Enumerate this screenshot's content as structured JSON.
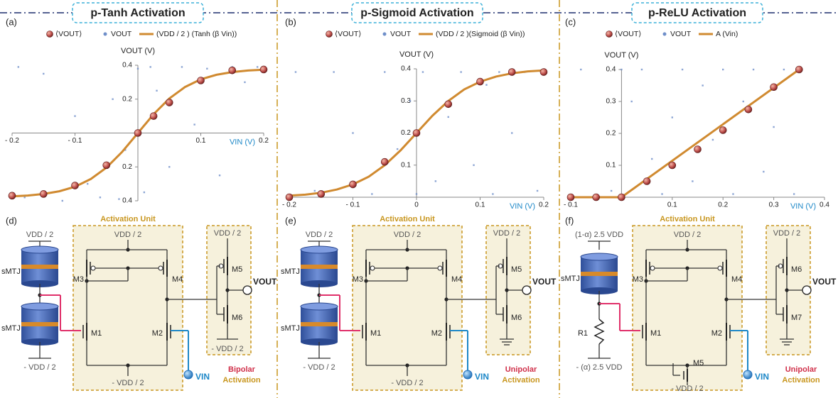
{
  "chart_data": [
    {
      "panel": "(a)",
      "type": "scatter",
      "title": "p-Tanh Activation",
      "xlabel": "VIN (V)",
      "ylabel": "VOUT (V)",
      "xlim": [
        -0.2,
        0.2
      ],
      "ylim": [
        -0.4,
        0.4
      ],
      "xticks": [
        {
          "value": -0.2,
          "label": "- 0.2"
        },
        {
          "value": -0.1,
          "label": "- 0.1"
        },
        0.1,
        0.2
      ],
      "yticks": [
        0.4,
        0.2,
        {
          "value": -0.2,
          "label": "0.2"
        },
        {
          "value": -0.4,
          "label": "0.4"
        }
      ],
      "series": [
        {
          "name": "⟨VOUT⟩",
          "type": "points",
          "color": "#c0504d",
          "x": [
            -0.2,
            -0.15,
            -0.1,
            -0.05,
            0,
            0.025,
            0.05,
            0.1,
            0.15,
            0.2
          ],
          "values": [
            -0.37,
            -0.36,
            -0.31,
            -0.19,
            0,
            0.1,
            0.18,
            0.31,
            0.37,
            0.375
          ]
        },
        {
          "name": "VOUT",
          "type": "scatter",
          "color": "#6f8fc9",
          "x": [
            -0.19,
            -0.18,
            -0.15,
            -0.12,
            -0.1,
            -0.08,
            -0.06,
            -0.04,
            -0.03,
            -0.02,
            0,
            0.01,
            0.02,
            0.03,
            0.05,
            0.07,
            0.09,
            0.11,
            0.13,
            0.15,
            0.17,
            0.19
          ],
          "values": [
            0.39,
            -0.38,
            0.35,
            -0.4,
            0.1,
            -0.3,
            -0.38,
            0.2,
            -0.39,
            -0.1,
            0.38,
            -0.35,
            0.39,
            0.25,
            -0.2,
            0.39,
            0.05,
            0.38,
            -0.25,
            0.39,
            0.3,
            0.39
          ]
        },
        {
          "name": "(VDD / 2 ) (Tanh (β Vin))",
          "type": "line",
          "color": "#d08a30",
          "x": [
            -0.2,
            -0.175,
            -0.15,
            -0.125,
            -0.1,
            -0.075,
            -0.05,
            -0.025,
            0,
            0.025,
            0.05,
            0.075,
            0.1,
            0.125,
            0.15,
            0.175,
            0.2
          ],
          "values": [
            -0.374,
            -0.369,
            -0.36,
            -0.344,
            -0.317,
            -0.272,
            -0.204,
            -0.111,
            0,
            0.111,
            0.204,
            0.272,
            0.317,
            0.344,
            0.36,
            0.369,
            0.374
          ]
        }
      ]
    },
    {
      "panel": "(b)",
      "type": "scatter",
      "title": "p-Sigmoid Activation",
      "xlabel": "VIN (V)",
      "ylabel": "VOUT (V)",
      "xlim": [
        -0.2,
        0.2
      ],
      "ylim": [
        0,
        0.4
      ],
      "xticks": [
        {
          "value": -0.2,
          "label": "- 0.2"
        },
        {
          "value": -0.1,
          "label": "- 0.1"
        },
        0,
        0.1,
        0.2
      ],
      "yticks": [
        0.1,
        0.2,
        0.3,
        0.4
      ],
      "series": [
        {
          "name": "⟨VOUT⟩",
          "type": "points",
          "color": "#c0504d",
          "x": [
            -0.2,
            -0.15,
            -0.1,
            -0.05,
            0,
            0.05,
            0.1,
            0.15,
            0.2
          ],
          "values": [
            0,
            0.01,
            0.04,
            0.11,
            0.2,
            0.29,
            0.36,
            0.39,
            0.39
          ]
        },
        {
          "name": "VOUT",
          "type": "scatter",
          "color": "#6f8fc9",
          "x": [
            -0.19,
            -0.16,
            -0.13,
            -0.1,
            -0.07,
            -0.05,
            -0.03,
            -0.01,
            0,
            0.01,
            0.03,
            0.05,
            0.07,
            0.09,
            0.11,
            0.12,
            0.13,
            0.15,
            0.17,
            0.19
          ],
          "values": [
            0.39,
            0.02,
            0.39,
            0.2,
            0.01,
            0.39,
            0.15,
            0.3,
            0.01,
            0.39,
            0.05,
            0.25,
            0.39,
            0.1,
            0.35,
            0.01,
            0.39,
            0.2,
            0.39,
            0.02
          ]
        },
        {
          "name": "(VDD / 2 )(Sigmoid (β Vin))",
          "type": "line",
          "color": "#d08a30",
          "x": [
            -0.2,
            -0.175,
            -0.15,
            -0.125,
            -0.1,
            -0.075,
            -0.05,
            -0.025,
            0,
            0.025,
            0.05,
            0.075,
            0.1,
            0.125,
            0.15,
            0.175,
            0.2
          ],
          "values": [
            0.005,
            0.008,
            0.014,
            0.024,
            0.04,
            0.064,
            0.1,
            0.146,
            0.2,
            0.254,
            0.3,
            0.336,
            0.36,
            0.376,
            0.386,
            0.392,
            0.395
          ]
        }
      ]
    },
    {
      "panel": "(c)",
      "type": "scatter",
      "title": "p-ReLU Activation",
      "xlabel": "VIN (V)",
      "ylabel": "VOUT (V)",
      "xlim": [
        -0.1,
        0.4
      ],
      "ylim": [
        0,
        0.4
      ],
      "xticks": [
        {
          "value": -0.1,
          "label": "- 0.1"
        },
        0.1,
        0.2,
        0.3,
        0.4
      ],
      "yticks": [
        0.1,
        0.2,
        0.3,
        0.4
      ],
      "series": [
        {
          "name": "⟨VOUT⟩",
          "type": "points",
          "color": "#c0504d",
          "x": [
            -0.1,
            -0.05,
            0,
            0.05,
            0.1,
            0.15,
            0.2,
            0.25,
            0.3,
            0.35
          ],
          "values": [
            0,
            0,
            0,
            0.05,
            0.1,
            0.15,
            0.21,
            0.275,
            0.345,
            0.4
          ]
        },
        {
          "name": "VOUT",
          "type": "scatter",
          "color": "#6f8fc9",
          "x": [
            -0.08,
            -0.02,
            0,
            0.02,
            0.04,
            0.06,
            0.08,
            0.1,
            0.12,
            0.14,
            0.16,
            0.18,
            0.2,
            0.22,
            0.24,
            0.26,
            0.28,
            0.3,
            0.32,
            0.34
          ],
          "values": [
            0.4,
            0.02,
            0.4,
            0.3,
            0.4,
            0.12,
            0.01,
            0.25,
            0.4,
            0.05,
            0.35,
            0.18,
            0.4,
            0.01,
            0.3,
            0.4,
            0.08,
            0.22,
            0.4,
            0.01
          ]
        },
        {
          "name": "A (Vin)",
          "type": "line",
          "color": "#d08a30",
          "x": [
            -0.1,
            0,
            0.35
          ],
          "values": [
            0,
            0,
            0.4
          ]
        }
      ]
    }
  ],
  "circuits": [
    {
      "panel": "(d)",
      "unit": "Activation Unit",
      "mtj_top": "VDD / 2",
      "mtj_bottom": "- VDD / 2",
      "mtj": [
        "sMTJ",
        "sMTJ"
      ],
      "rail_top": "VDD / 2",
      "rail_bottom": "- VDD / 2",
      "pmos": [
        "M3",
        "M4"
      ],
      "nmos": [
        "M1",
        "M2"
      ],
      "inv": [
        "M5",
        "M6"
      ],
      "inv_top": "VDD / 2",
      "inv_bottom": "- VDD / 2",
      "vout": "VOUT",
      "vin": "VIN",
      "mode": [
        "Bipolar",
        "Activation"
      ]
    },
    {
      "panel": "(e)",
      "unit": "Activation Unit",
      "mtj_top": "VDD / 2",
      "mtj_bottom": "- VDD / 2",
      "mtj": [
        "sMTJ",
        "sMTJ"
      ],
      "rail_top": "VDD / 2",
      "rail_bottom": "- VDD / 2",
      "pmos": [
        "M3",
        "M4"
      ],
      "nmos": [
        "M1",
        "M2"
      ],
      "inv": [
        "M5",
        "M6"
      ],
      "inv_top": "VDD / 2",
      "vout": "VOUT",
      "vin": "VIN",
      "mode": [
        "Unipolar",
        "Activation"
      ]
    },
    {
      "panel": "(f)",
      "unit": "Activation Unit",
      "mtj_top": "(1-α) 2.5 VDD",
      "mtj_bottom": "- (α) 2.5 VDD",
      "mtj": [
        "sMTJ"
      ],
      "resistor": "R1",
      "rail_top": "VDD / 2",
      "rail_bottom": "- VDD / 2",
      "pmos": [
        "M3",
        "M4"
      ],
      "nmos": [
        "M1",
        "M2"
      ],
      "tail": "M5",
      "inv": [
        "M6",
        "M7"
      ],
      "inv_top": "VDD / 2",
      "vout": "VOUT",
      "vin": "VIN",
      "mode": [
        "Unipolar",
        "Activation"
      ]
    }
  ]
}
